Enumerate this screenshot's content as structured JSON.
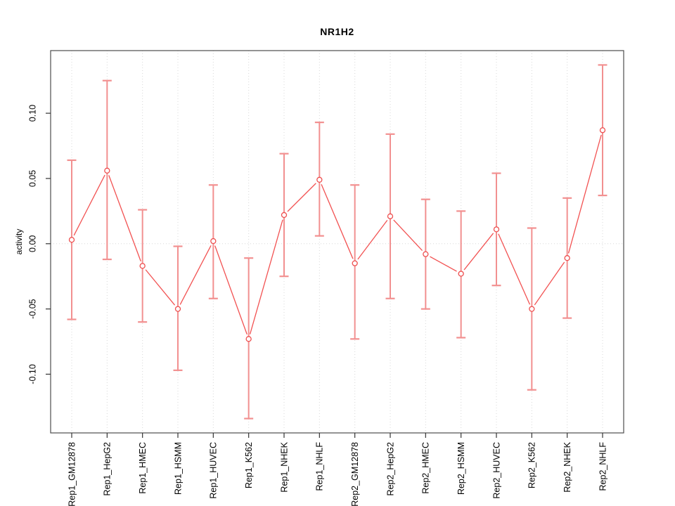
{
  "figure": {
    "title": "NR1H2",
    "y_axis_title": "activity",
    "background_color": "#ffffff"
  },
  "chart_data": {
    "type": "line",
    "title": "NR1H2",
    "xlabel": "",
    "ylabel": "activity",
    "categories": [
      "Rep1_GM12878",
      "Rep1_HepG2",
      "Rep1_HMEC",
      "Rep1_HSMM",
      "Rep1_HUVEC",
      "Rep1_K562",
      "Rep1_NHEK",
      "Rep1_NHLF",
      "Rep2_GM12878",
      "Rep2_HepG2",
      "Rep2_HMEC",
      "Rep2_HSMM",
      "Rep2_HUVEC",
      "Rep2_K562",
      "Rep2_NHEK",
      "Rep2_NHLF"
    ],
    "series": [
      {
        "name": "activity",
        "values": [
          0.003,
          0.056,
          -0.017,
          -0.05,
          0.002,
          -0.073,
          0.022,
          0.049,
          -0.015,
          0.021,
          -0.008,
          -0.023,
          0.011,
          -0.05,
          -0.011,
          0.087
        ],
        "error_upper": [
          0.064,
          0.125,
          0.026,
          -0.002,
          0.045,
          -0.011,
          0.069,
          0.093,
          0.045,
          0.084,
          0.034,
          0.025,
          0.054,
          0.012,
          0.035,
          0.137
        ],
        "error_lower": [
          -0.058,
          -0.012,
          -0.06,
          -0.097,
          -0.042,
          -0.134,
          -0.025,
          0.006,
          -0.073,
          -0.042,
          -0.05,
          -0.072,
          -0.032,
          -0.112,
          -0.057,
          0.037
        ]
      }
    ],
    "ylim": [
      -0.145,
      0.148
    ],
    "yticks": [
      -0.1,
      -0.05,
      0.0,
      0.05,
      0.1
    ],
    "ytick_labels": [
      "-0.10",
      "-0.05",
      "0.00",
      "0.05",
      "0.10"
    ],
    "grid": "dotted vertical gridline at every category; dotted horizontal line at y=0",
    "legend_position": "none",
    "marker": "open-circle",
    "colors": {
      "line": "#f25252",
      "point_stroke": "#ee4e4e",
      "point_fill": "#ffffff",
      "error_bar": "#f29090",
      "gridline": "#d8d8d8",
      "box": "#4d4d4d",
      "tick": "#333333",
      "text": "#000000"
    }
  }
}
